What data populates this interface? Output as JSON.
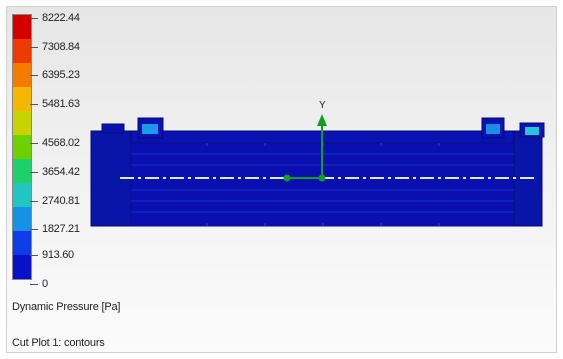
{
  "legend": {
    "title": "Dynamic Pressure [Pa]",
    "values": [
      "8222.44",
      "7308.84",
      "6395.23",
      "5481.63",
      "4568.02",
      "3654.42",
      "2740.81",
      "1827.21",
      "913.60",
      "0"
    ],
    "colors": [
      "#d40000",
      "#ee3a00",
      "#f47a00",
      "#f4b800",
      "#c9d300",
      "#6ed000",
      "#1ed06a",
      "#21c6c2",
      "#1591e6",
      "#0f3ce9",
      "#0a10c8"
    ]
  },
  "plot": {
    "label": "Cut Plot 1: contours",
    "axis_y_label": "Y"
  },
  "colors": {
    "model_fill": "#0a12b4",
    "model_edge": "#050b70",
    "axis_green": "#10a020",
    "centerline": "#d7ecff"
  }
}
